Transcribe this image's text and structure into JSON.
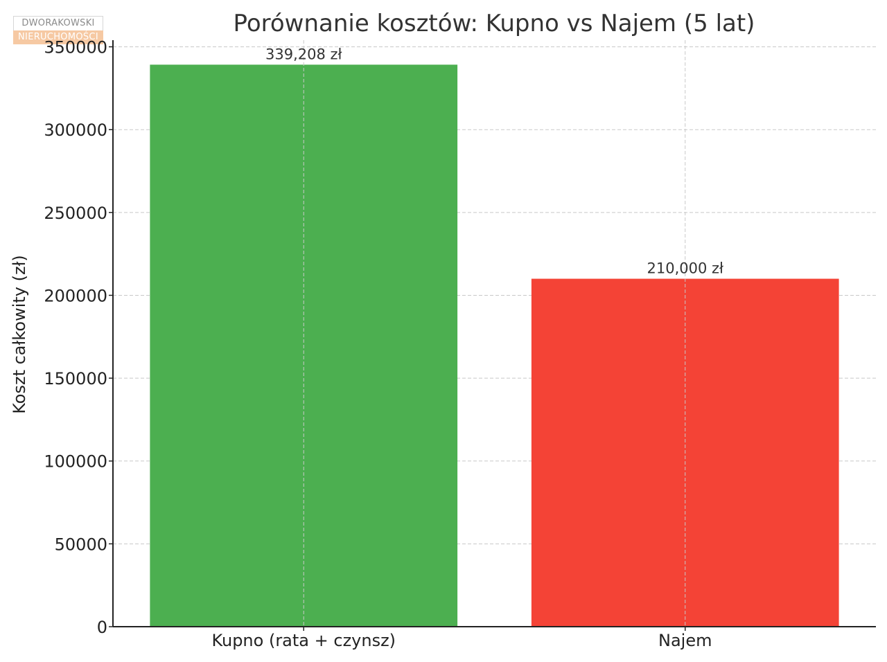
{
  "watermark": {
    "line1": "DWORAKOWSKI",
    "line2": "NIERUCHOMOŚCI"
  },
  "chart_data": {
    "type": "bar",
    "title": "Porównanie kosztów: Kupno vs Najem (5 lat)",
    "xlabel": "",
    "ylabel": "Koszt całkowity (zł)",
    "categories": [
      "Kupno (rata + czynsz)",
      "Najem"
    ],
    "values": [
      339208,
      210000
    ],
    "value_labels": [
      "339,208 zł",
      "210,000 zł"
    ],
    "colors": [
      "#4caf50",
      "#f44336"
    ],
    "ylim": [
      0,
      354000
    ],
    "yticks": [
      0,
      50000,
      100000,
      150000,
      200000,
      250000,
      300000,
      350000
    ],
    "grid": true,
    "legend": "none"
  }
}
